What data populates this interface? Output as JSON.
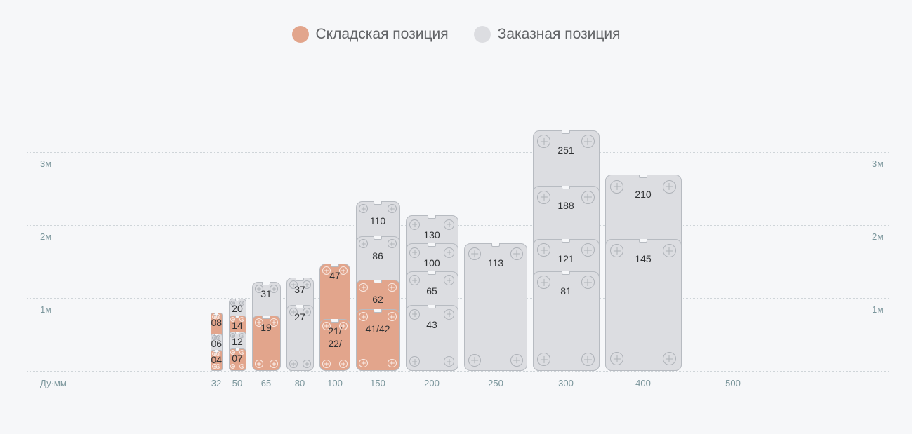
{
  "legend": [
    {
      "label": "Складская позиция",
      "color": "#e2a58c"
    },
    {
      "label": "Заказная позиция",
      "color": "#dcdde1"
    }
  ],
  "y_axis": {
    "labels": [
      "3м",
      "2м",
      "1м"
    ],
    "values_m": [
      3,
      2,
      1
    ]
  },
  "x_axis": {
    "title": "Ду·мм"
  },
  "colors": {
    "stock": "#e2a58c",
    "order": "#dcdde1"
  },
  "columns": [
    {
      "dn": "32",
      "plates": [
        {
          "label": "08",
          "height_m": 0.8,
          "type": "stock"
        },
        {
          "label": "06",
          "height_m": 0.51,
          "type": "order"
        },
        {
          "label": "04",
          "height_m": 0.29,
          "type": "stock"
        }
      ]
    },
    {
      "dn": "50",
      "plates": [
        {
          "label": "20",
          "height_m": 0.99,
          "type": "order"
        },
        {
          "label": "14",
          "height_m": 0.76,
          "type": "stock"
        },
        {
          "label": "12",
          "height_m": 0.54,
          "type": "order"
        },
        {
          "label": "07",
          "height_m": 0.31,
          "type": "stock"
        }
      ]
    },
    {
      "dn": "65",
      "plates": [
        {
          "label": "31",
          "height_m": 1.22,
          "type": "order"
        },
        {
          "label": "19",
          "height_m": 0.76,
          "type": "stock"
        }
      ]
    },
    {
      "dn": "80",
      "plates": [
        {
          "label": "37",
          "height_m": 1.28,
          "type": "order"
        },
        {
          "label": "27",
          "height_m": 0.9,
          "type": "order"
        }
      ]
    },
    {
      "dn": "100",
      "plates": [
        {
          "label": "47",
          "height_m": 1.47,
          "type": "stock"
        },
        {
          "label": "21/\n22/",
          "height_m": 0.71,
          "type": "stock"
        }
      ]
    },
    {
      "dn": "150",
      "plates": [
        {
          "label": "110",
          "height_m": 2.33,
          "type": "order"
        },
        {
          "label": "86",
          "height_m": 1.85,
          "type": "order"
        },
        {
          "label": "62",
          "height_m": 1.25,
          "type": "stock"
        },
        {
          "label": "41/42",
          "height_m": 0.85,
          "type": "stock"
        }
      ]
    },
    {
      "dn": "200",
      "plates": [
        {
          "label": "130",
          "height_m": 2.13,
          "type": "order"
        },
        {
          "label": "100",
          "height_m": 1.75,
          "type": "order"
        },
        {
          "label": "65",
          "height_m": 1.37,
          "type": "order"
        },
        {
          "label": "43",
          "height_m": 0.9,
          "type": "order"
        }
      ]
    },
    {
      "dn": "250",
      "plates": [
        {
          "label": "113",
          "height_m": 1.75,
          "type": "order"
        }
      ]
    },
    {
      "dn": "300",
      "plates": [
        {
          "label": "251",
          "height_m": 3.3,
          "type": "order"
        },
        {
          "label": "188",
          "height_m": 2.54,
          "type": "order"
        },
        {
          "label": "121",
          "height_m": 1.81,
          "type": "order"
        },
        {
          "label": "81",
          "height_m": 1.37,
          "type": "order"
        }
      ]
    },
    {
      "dn": "400",
      "plates": [
        {
          "label": "210",
          "height_m": 2.69,
          "type": "order"
        },
        {
          "label": "145",
          "height_m": 1.81,
          "type": "order"
        }
      ]
    },
    {
      "dn": "500",
      "plates": []
    }
  ]
}
